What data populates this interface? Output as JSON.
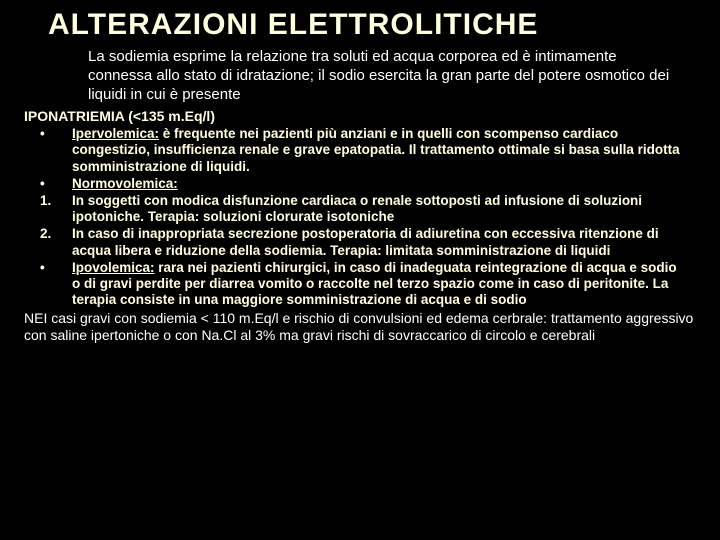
{
  "title": "ALTERAZIONI ELETTROLITICHE",
  "intro": "La sodiemia esprime la relazione tra soluti ed acqua corporea ed è intimamente connessa allo stato di idratazione; il sodio esercita la gran parte del potere osmotico dei liquidi in cui è presente",
  "section_header": "IPONATRIEMIA (<135 m.Eq/l)",
  "items": [
    {
      "bullet": "•",
      "label": "Ipervolemica:",
      "text": " è frequente nei pazienti più anziani e in quelli con scompenso cardiaco congestizio, insufficienza renale e grave epatopatia. ",
      "highlight": "Il trattamento ottimale si basa sulla ridotta somministrazione di liquidi."
    },
    {
      "bullet": "•",
      "label": "Normovolemica:",
      "text": "",
      "highlight": ""
    },
    {
      "bullet": "1.",
      "label": "",
      "text": "In soggetti con modica disfunzione cardiaca o renale sottoposti ad infusione di soluzioni ipotoniche. ",
      "highlight": "Terapia: soluzioni clorurate isotoniche"
    },
    {
      "bullet": "2.",
      "label": "",
      "text": "In caso di inappropriata secrezione postoperatoria di adiuretina con eccessiva ritenzione di acqua libera e riduzione della sodiemia. ",
      "highlight": "Terapia: limitata somministrazione di liquidi"
    },
    {
      "bullet": "•",
      "label": "Ipovolemica:",
      "text": " rara nei pazienti chirurgici, in caso di inadeguata reintegrazione di acqua e sodio o di gravi perdite per diarrea vomito o raccolte nel terzo spazio come in caso di peritonite. ",
      "highlight": "La terapia consiste in una maggiore somministrazione di acqua e di sodio"
    }
  ],
  "footer": "NEI casi gravi con sodiemia < 110 m.Eq/l e rischio di convulsioni ed edema cerbrale: trattamento aggressivo con saline ipertoniche o con Na.Cl al 3% ma gravi rischi di sovraccarico di circolo e cerebrali",
  "colors": {
    "background": "#000000",
    "title": "#ffffe0",
    "body_white": "#ffffff",
    "body_yellow": "#ffffe0"
  }
}
